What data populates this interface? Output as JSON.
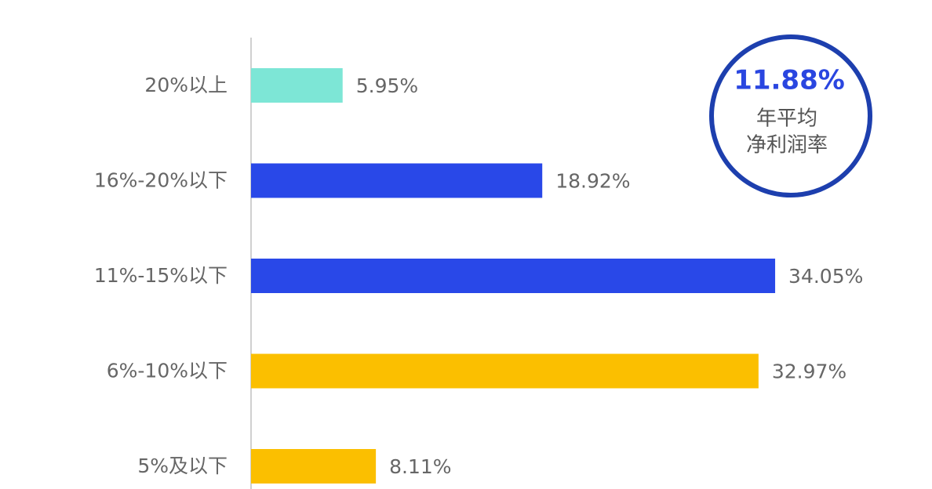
{
  "chart_data": {
    "type": "bar",
    "orientation": "horizontal",
    "categories": [
      "20%以上",
      "16%-20%以下",
      "11%-15%以下",
      "6%-10%以下",
      "5%及以下"
    ],
    "values": [
      5.95,
      18.92,
      34.05,
      32.97,
      8.11
    ],
    "value_labels": [
      "5.95%",
      "18.92%",
      "34.05%",
      "32.97%",
      "8.11%"
    ],
    "colors": [
      "#7de6d6",
      "#2948e8",
      "#2948e8",
      "#fbbf00",
      "#fbbf00"
    ],
    "annotation": {
      "label": "11.88%",
      "lines": [
        "年平均",
        "净利润率"
      ]
    }
  }
}
